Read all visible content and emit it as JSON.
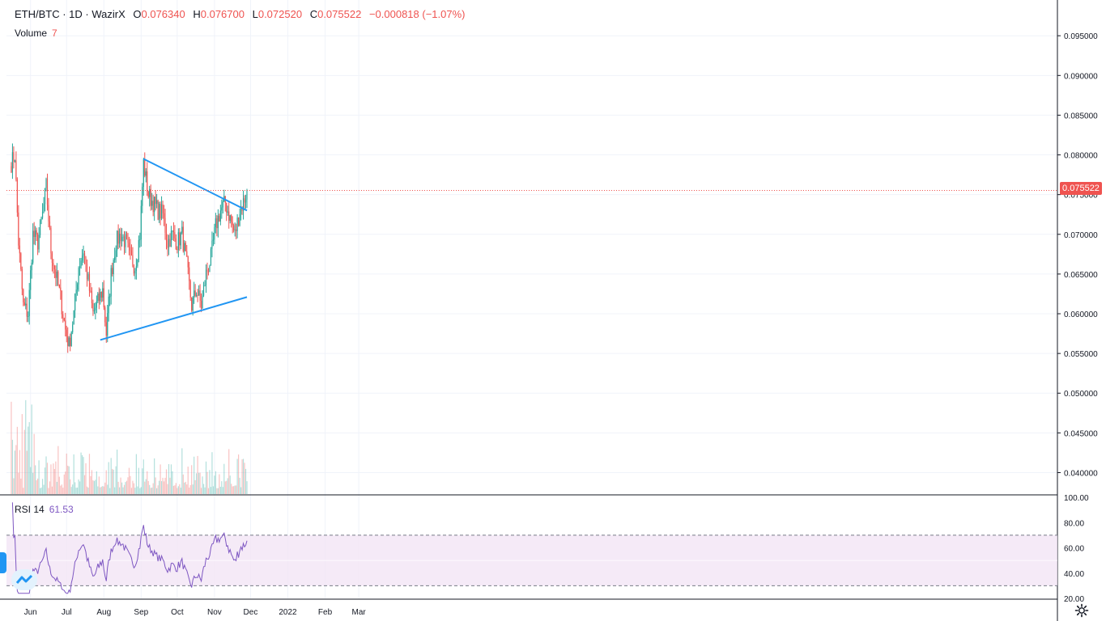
{
  "legend": {
    "symbol": "ETH/BTC · 1D · WazirX",
    "open_label": "O",
    "open": "0.076340",
    "high_label": "H",
    "high": "0.076700",
    "low_label": "L",
    "low": "0.072520",
    "close_label": "C",
    "close": "0.075522",
    "change": "−0.000818 (−1.07%)"
  },
  "volume_legend": {
    "label": "Volume",
    "value": "7"
  },
  "rsi_legend": {
    "label": "RSI 14",
    "value": "61.53"
  },
  "last_price_label": "0.075522",
  "colors": {
    "up": "#26a69a",
    "down": "#ef5350",
    "trend": "#2196f3",
    "rsi": "#7e57c2",
    "rsi_band": "#f3e5f5"
  },
  "chart_data": {
    "type": "candlestick",
    "price_axis": {
      "ticks": [
        "0.095000",
        "0.090000",
        "0.085000",
        "0.080000",
        "0.075000",
        "0.070000",
        "0.065000",
        "0.060000",
        "0.055000",
        "0.050000",
        "0.045000",
        "0.040000"
      ],
      "range": [
        0.0373,
        0.0995
      ]
    },
    "time_axis": {
      "ticks": [
        "Jun",
        "Jul",
        "Aug",
        "Sep",
        "Oct",
        "Nov",
        "Dec",
        "2022",
        "Feb",
        "Mar"
      ]
    },
    "rsi_axis": {
      "ticks": [
        "100.00",
        "80.00",
        "60.00",
        "40.00",
        "20.00"
      ],
      "range": [
        20,
        100
      ],
      "bands": [
        70,
        30
      ]
    },
    "trendlines": [
      {
        "from": [
          "2021-09-03",
          0.0795
        ],
        "to": [
          "2021-11-28",
          0.073
        ]
      },
      {
        "from": [
          "2021-07-29",
          0.0567
        ],
        "to": [
          "2021-11-28",
          0.0621
        ]
      }
    ],
    "last_price": 0.075522,
    "series_anchor": {
      "start_date": "2021-05-16",
      "end_date": "2021-11-28"
    },
    "close_anchors": [
      [
        "2021-05-16",
        0.079
      ],
      [
        "2021-05-19",
        0.08
      ],
      [
        "2021-05-22",
        0.069
      ],
      [
        "2021-05-26",
        0.061
      ],
      [
        "2021-05-30",
        0.06
      ],
      [
        "2021-06-03",
        0.07
      ],
      [
        "2021-06-07",
        0.069
      ],
      [
        "2021-06-11",
        0.0725
      ],
      [
        "2021-06-14",
        0.076
      ],
      [
        "2021-06-18",
        0.068
      ],
      [
        "2021-06-22",
        0.065
      ],
      [
        "2021-06-26",
        0.062
      ],
      [
        "2021-06-30",
        0.058
      ],
      [
        "2021-07-03",
        0.056
      ],
      [
        "2021-07-07",
        0.06
      ],
      [
        "2021-07-11",
        0.066
      ],
      [
        "2021-07-15",
        0.068
      ],
      [
        "2021-07-19",
        0.064
      ],
      [
        "2021-07-23",
        0.06
      ],
      [
        "2021-07-27",
        0.0615
      ],
      [
        "2021-07-31",
        0.063
      ],
      [
        "2021-08-03",
        0.0575
      ],
      [
        "2021-08-07",
        0.065
      ],
      [
        "2021-08-11",
        0.069
      ],
      [
        "2021-08-15",
        0.07
      ],
      [
        "2021-08-19",
        0.069
      ],
      [
        "2021-08-23",
        0.067
      ],
      [
        "2021-08-27",
        0.066
      ],
      [
        "2021-08-31",
        0.07
      ],
      [
        "2021-09-03",
        0.079
      ],
      [
        "2021-09-07",
        0.075
      ],
      [
        "2021-09-11",
        0.074
      ],
      [
        "2021-09-15",
        0.073
      ],
      [
        "2021-09-19",
        0.0725
      ],
      [
        "2021-09-23",
        0.069
      ],
      [
        "2021-09-27",
        0.07
      ],
      [
        "2021-10-01",
        0.069
      ],
      [
        "2021-10-05",
        0.07
      ],
      [
        "2021-10-09",
        0.066
      ],
      [
        "2021-10-13",
        0.061
      ],
      [
        "2021-10-17",
        0.063
      ],
      [
        "2021-10-21",
        0.061
      ],
      [
        "2021-10-25",
        0.065
      ],
      [
        "2021-10-29",
        0.067
      ],
      [
        "2021-11-02",
        0.071
      ],
      [
        "2021-11-06",
        0.073
      ],
      [
        "2021-11-10",
        0.074
      ],
      [
        "2021-11-14",
        0.072
      ],
      [
        "2021-11-18",
        0.07
      ],
      [
        "2021-11-22",
        0.073
      ],
      [
        "2021-11-25",
        0.074
      ],
      [
        "2021-11-28",
        0.0755
      ]
    ]
  }
}
